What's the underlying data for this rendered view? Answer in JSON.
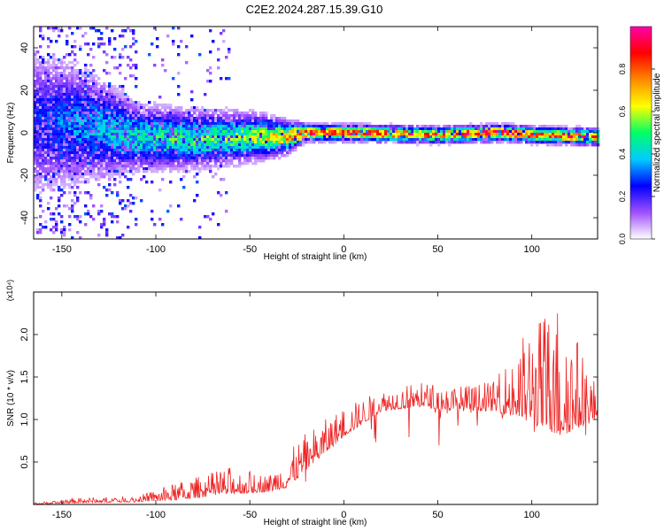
{
  "page": {
    "title": "C2E2.2024.287.15.39.G10"
  },
  "chart_data": [
    {
      "type": "heatmap",
      "title": "C2E2.2024.287.15.39.G10",
      "xlabel": "Height of straight line (km)",
      "ylabel": "Frequency (Hz)",
      "xlim": [
        -165,
        135
      ],
      "ylim": [
        -50,
        50
      ],
      "xticks": [
        -150,
        -100,
        -50,
        0,
        50,
        100
      ],
      "yticks": [
        -40,
        -20,
        0,
        20,
        40
      ],
      "colorbar": {
        "label": "Normalized spectral amplitude",
        "range": [
          0,
          1
        ],
        "ticks": [
          0.0,
          0.2,
          0.4,
          0.6,
          0.8
        ],
        "colormap": [
          "#ffffff",
          "#a050ff",
          "#0000ff",
          "#00ccff",
          "#00ff66",
          "#ffff00",
          "#ff8800",
          "#ff0000",
          "#ff00aa"
        ]
      },
      "ridge": [
        {
          "x": -165,
          "y": 5,
          "amp": 0.25,
          "spread": 18
        },
        {
          "x": -140,
          "y": 4,
          "amp": 0.35,
          "spread": 14
        },
        {
          "x": -110,
          "y": -2,
          "amp": 0.45,
          "spread": 8
        },
        {
          "x": -80,
          "y": -3,
          "amp": 0.5,
          "spread": 7
        },
        {
          "x": -50,
          "y": -2,
          "amp": 0.55,
          "spread": 6
        },
        {
          "x": -30,
          "y": -2,
          "amp": 0.7,
          "spread": 4
        },
        {
          "x": -20,
          "y": 0,
          "amp": 0.95,
          "spread": 2
        },
        {
          "x": 0,
          "y": 0,
          "amp": 0.9,
          "spread": 2
        },
        {
          "x": 50,
          "y": -1,
          "amp": 0.8,
          "spread": 2
        },
        {
          "x": 85,
          "y": 0,
          "amp": 0.95,
          "spread": 2
        },
        {
          "x": 100,
          "y": -1,
          "amp": 0.8,
          "spread": 2
        },
        {
          "x": 135,
          "y": -2,
          "amp": 0.85,
          "spread": 2
        }
      ]
    },
    {
      "type": "line",
      "xlabel": "Height of straight line (km)",
      "ylabel": "SNR (10 * v/v)",
      "y_multiplier": "(x10⁴)",
      "xlim": [
        -165,
        135
      ],
      "ylim": [
        0,
        2.5
      ],
      "xticks": [
        -150,
        -100,
        -50,
        0,
        50,
        100
      ],
      "yticks": [
        0.5,
        1.0,
        1.5,
        2.0
      ],
      "color": "#ee2222",
      "envelope": [
        {
          "x": -165,
          "base": 0.0,
          "peak": 0.02
        },
        {
          "x": -140,
          "base": 0.02,
          "peak": 0.08
        },
        {
          "x": -110,
          "base": 0.03,
          "peak": 0.1
        },
        {
          "x": -90,
          "base": 0.05,
          "peak": 0.25
        },
        {
          "x": -60,
          "base": 0.12,
          "peak": 0.45
        },
        {
          "x": -40,
          "base": 0.15,
          "peak": 0.35
        },
        {
          "x": -30,
          "base": 0.2,
          "peak": 0.6
        },
        {
          "x": -20,
          "base": 0.4,
          "peak": 0.85
        },
        {
          "x": 0,
          "base": 0.8,
          "peak": 1.15
        },
        {
          "x": 20,
          "base": 1.1,
          "peak": 1.35
        },
        {
          "x": 40,
          "base": 1.15,
          "peak": 1.45
        },
        {
          "x": 60,
          "base": 1.1,
          "peak": 1.4
        },
        {
          "x": 80,
          "base": 1.1,
          "peak": 1.45
        },
        {
          "x": 95,
          "base": 1.0,
          "peak": 2.0
        },
        {
          "x": 115,
          "base": 0.8,
          "peak": 2.5
        },
        {
          "x": 135,
          "base": 1.0,
          "peak": 1.4
        }
      ]
    }
  ]
}
